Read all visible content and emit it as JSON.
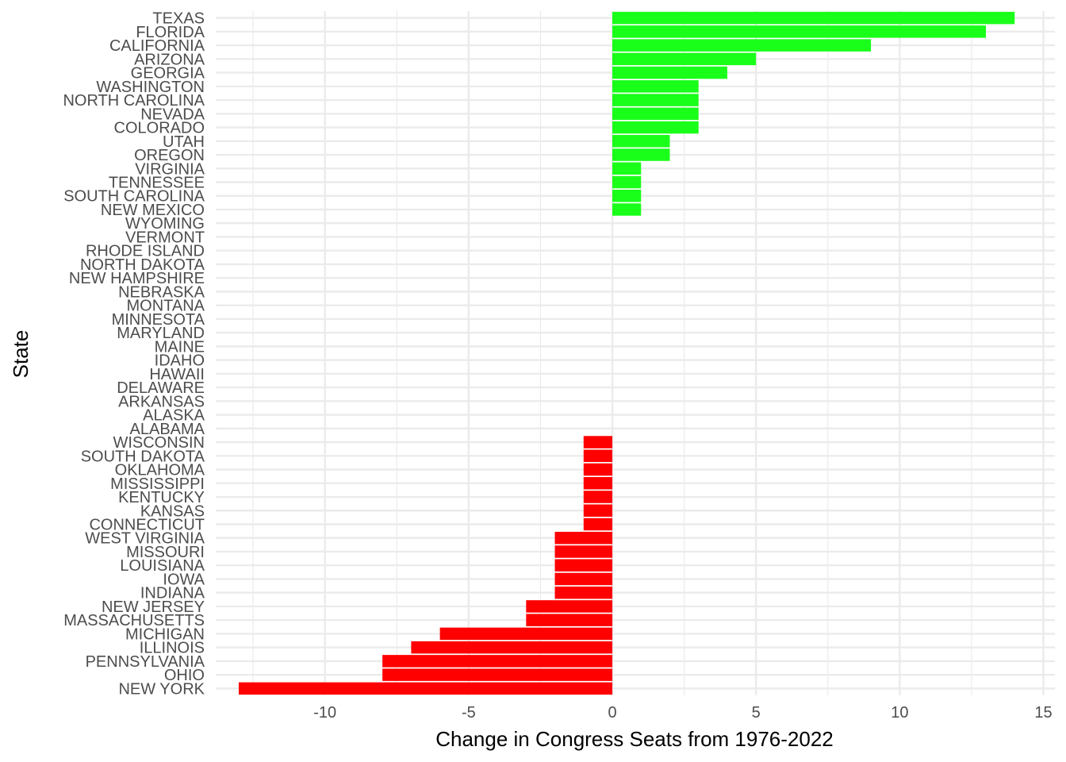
{
  "chart_data": {
    "type": "bar",
    "orientation": "horizontal",
    "xlabel": "Change in Congress Seats from 1976-2022",
    "ylabel": "State",
    "xlim": [
      -13.8,
      15.4
    ],
    "x_ticks": [
      -10,
      -5,
      0,
      5,
      10,
      15
    ],
    "x_tick_labels": [
      "-10",
      "-5",
      "0",
      "5",
      "10",
      "15"
    ],
    "grid": true,
    "legend": "none",
    "colors": {
      "positive": "#1aff1a",
      "negative": "#ff0000",
      "grid": "#ebebeb",
      "text": "#4d4d4d"
    },
    "categories": [
      "TEXAS",
      "FLORIDA",
      "CALIFORNIA",
      "ARIZONA",
      "GEORGIA",
      "WASHINGTON",
      "NORTH CAROLINA",
      "NEVADA",
      "COLORADO",
      "UTAH",
      "OREGON",
      "VIRGINIA",
      "TENNESSEE",
      "SOUTH CAROLINA",
      "NEW MEXICO",
      "WYOMING",
      "VERMONT",
      "RHODE ISLAND",
      "NORTH DAKOTA",
      "NEW HAMPSHIRE",
      "NEBRASKA",
      "MONTANA",
      "MINNESOTA",
      "MARYLAND",
      "MAINE",
      "IDAHO",
      "HAWAII",
      "DELAWARE",
      "ARKANSAS",
      "ALASKA",
      "ALABAMA",
      "WISCONSIN",
      "SOUTH DAKOTA",
      "OKLAHOMA",
      "MISSISSIPPI",
      "KENTUCKY",
      "KANSAS",
      "CONNECTICUT",
      "WEST VIRGINIA",
      "MISSOURI",
      "LOUISIANA",
      "IOWA",
      "INDIANA",
      "NEW JERSEY",
      "MASSACHUSETTS",
      "MICHIGAN",
      "ILLINOIS",
      "PENNSYLVANIA",
      "OHIO",
      "NEW YORK"
    ],
    "values": [
      14,
      13,
      9,
      5,
      4,
      3,
      3,
      3,
      3,
      2,
      2,
      1,
      1,
      1,
      1,
      0,
      0,
      0,
      0,
      0,
      0,
      0,
      0,
      0,
      0,
      0,
      0,
      0,
      0,
      0,
      0,
      -1,
      -1,
      -1,
      -1,
      -1,
      -1,
      -1,
      -2,
      -2,
      -2,
      -2,
      -2,
      -3,
      -3,
      -6,
      -7,
      -8,
      -8,
      -13
    ]
  }
}
